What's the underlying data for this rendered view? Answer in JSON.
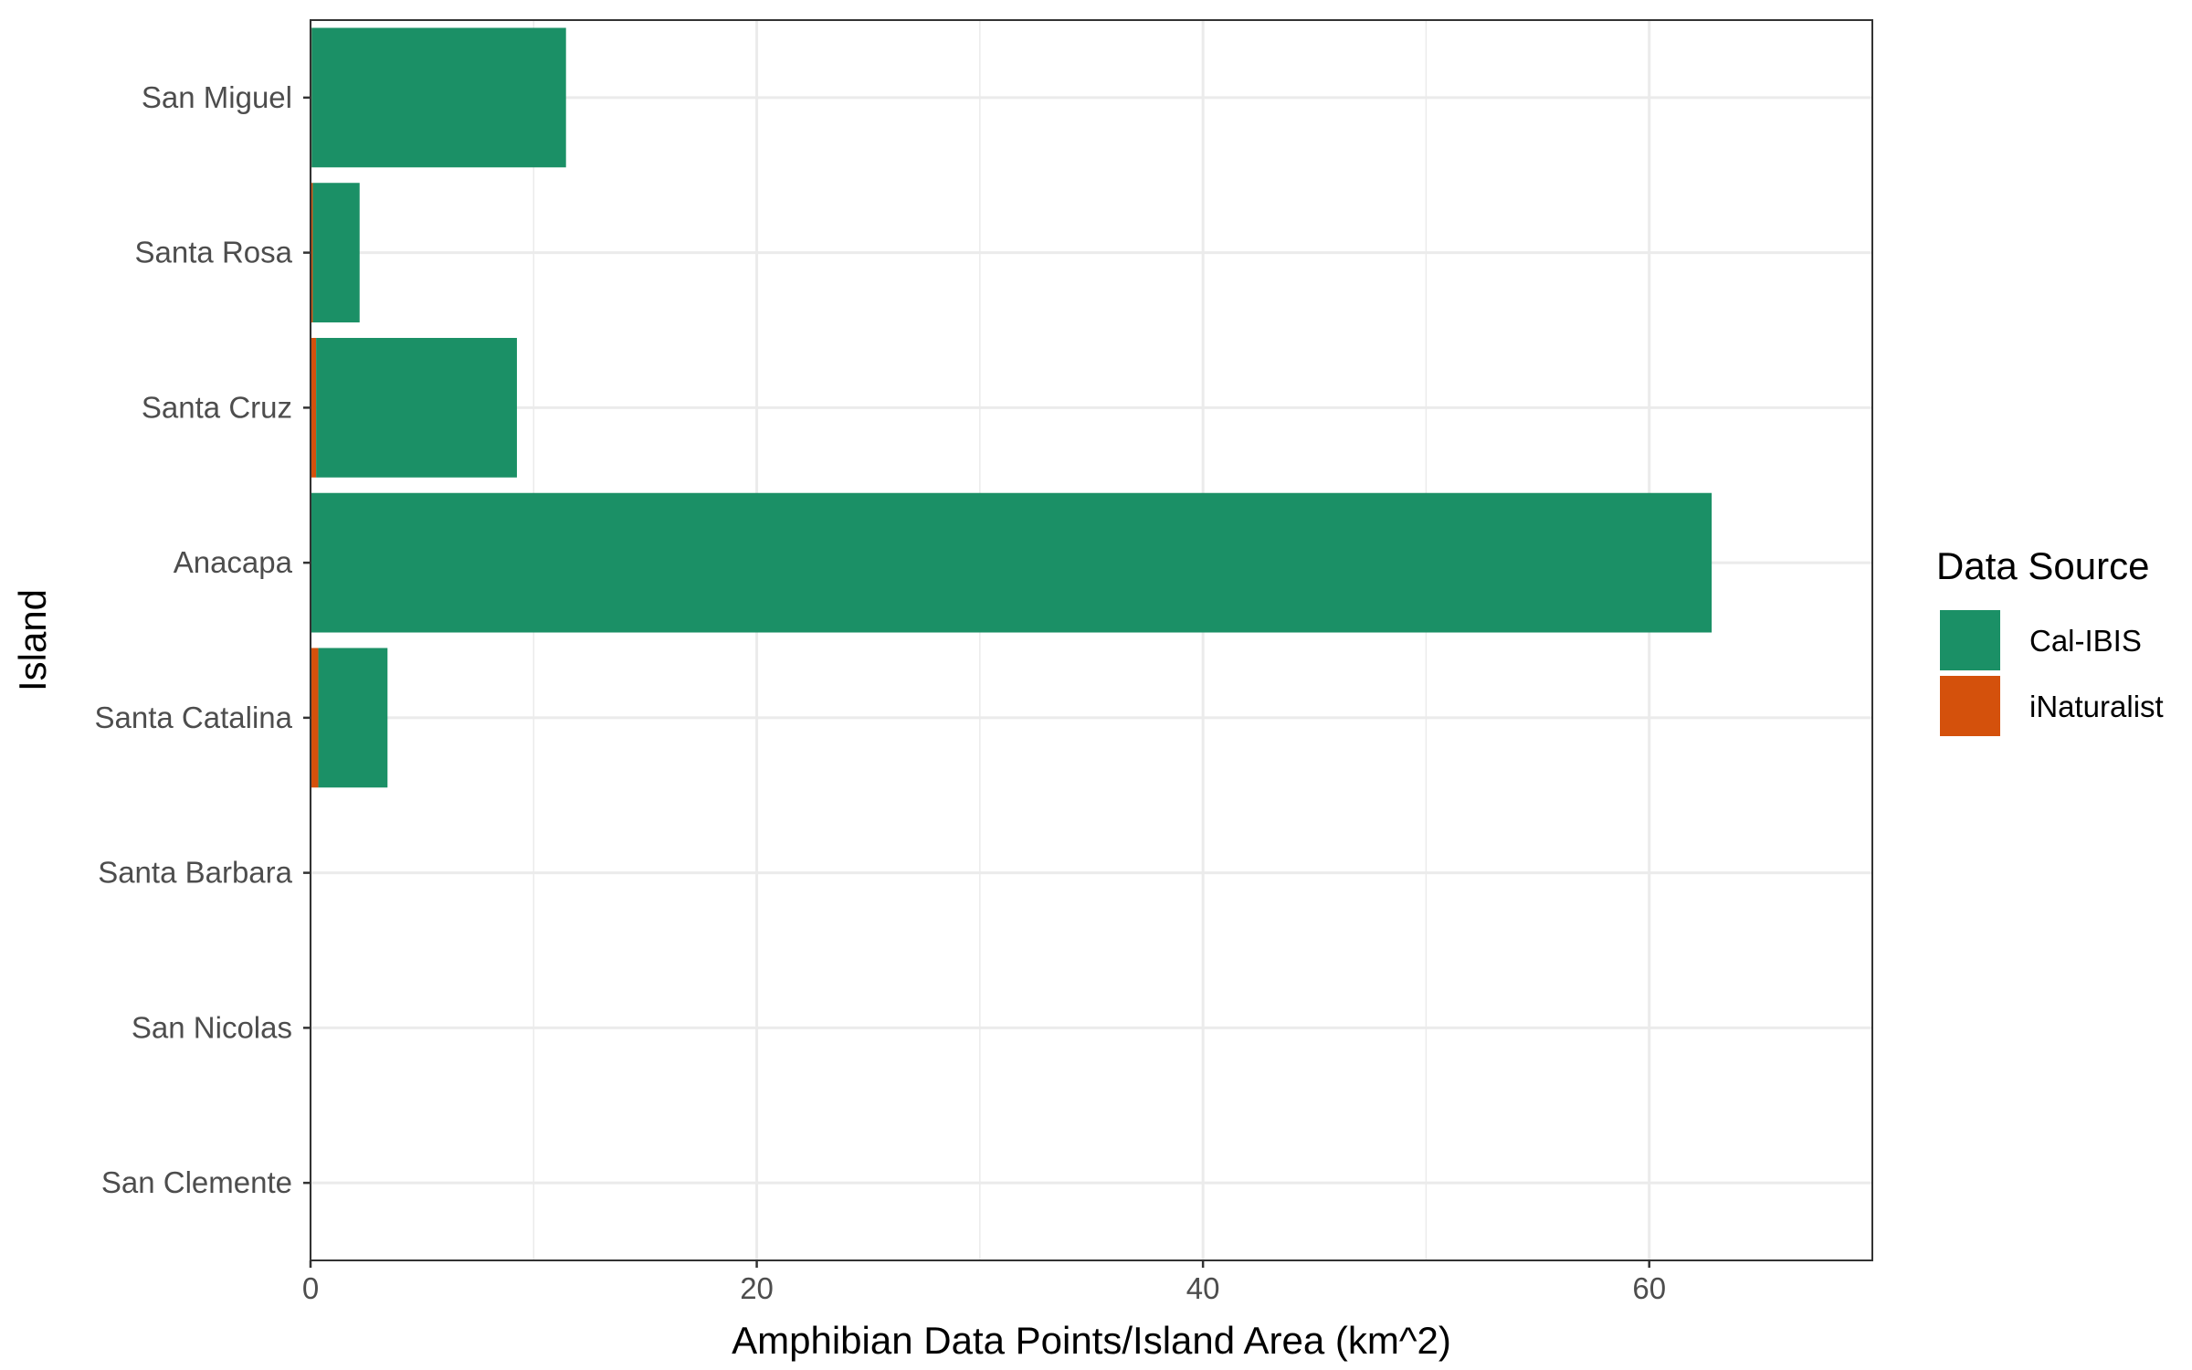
{
  "chart_data": {
    "type": "bar",
    "orientation": "horizontal",
    "stacked": true,
    "categories": [
      "San Miguel",
      "Santa Rosa",
      "Santa Cruz",
      "Anacapa",
      "Santa Catalina",
      "Santa Barbara",
      "San Nicolas",
      "San Clemente"
    ],
    "series": [
      {
        "name": "Cal-IBIS",
        "color": "#1b9066",
        "values": [
          11.4,
          2.1,
          9.0,
          62.8,
          3.1,
          0,
          0,
          0
        ]
      },
      {
        "name": "iNaturalist",
        "color": "#d4510c",
        "values": [
          0.05,
          0.1,
          0.25,
          0,
          0.35,
          0,
          0,
          0
        ]
      }
    ],
    "xlabel": "Amphibian Data Points/Island Area (km^2)",
    "ylabel": "Island",
    "xlim": [
      0,
      70
    ],
    "xticks": [
      0,
      20,
      40,
      60
    ],
    "grid": true,
    "legend": {
      "title": "Data Source",
      "position": "right"
    }
  }
}
